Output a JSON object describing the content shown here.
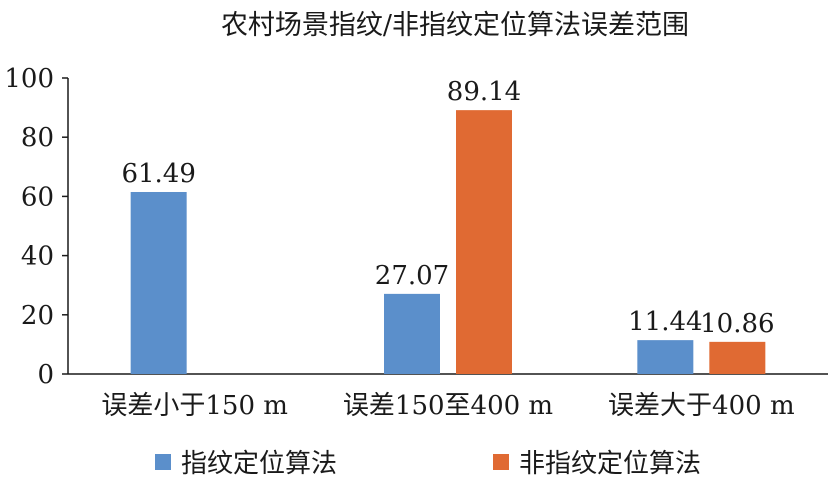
{
  "chart_data": {
    "type": "bar",
    "title": "农村场景指纹/非指纹定位算法误差范围",
    "xlabel": "",
    "ylabel": "",
    "categories": [
      "误差小于150 m",
      "误差150至400 m",
      "误差大于400 m"
    ],
    "series": [
      {
        "name": "指纹定位算法",
        "values": [
          61.49,
          27.07,
          11.44
        ],
        "labels": [
          "61.49",
          "27.07",
          "11.44"
        ],
        "color": "#5b8fcb"
      },
      {
        "name": "非指纹定位算法",
        "values": [
          null,
          89.14,
          10.86
        ],
        "labels": [
          "",
          "89.14",
          "10.86"
        ],
        "color": "#e06a33"
      }
    ],
    "ylim": [
      0,
      100
    ],
    "yticks": [
      "0",
      "20",
      "40",
      "60",
      "80",
      "100"
    ],
    "grid": false,
    "legend": "bottom"
  }
}
